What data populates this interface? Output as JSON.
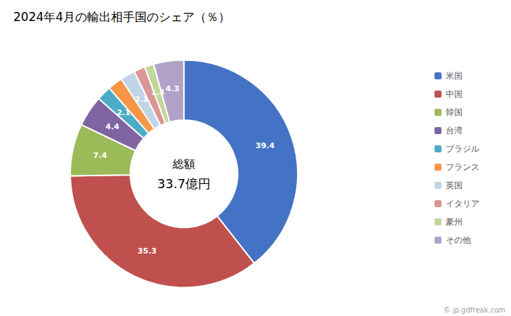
{
  "chart_data": {
    "type": "pie",
    "title": "2024年4月の輸出相手国のシェア（％）",
    "center_text": [
      "総額",
      "33.7億円"
    ],
    "annotations": [
      "© jp.gdfreak.com"
    ],
    "categories": [
      "米国",
      "中国",
      "韓国",
      "台湾",
      "ブラジル",
      "フランス",
      "英国",
      "イタリア",
      "豪州",
      "その他"
    ],
    "values": [
      39.4,
      35.3,
      7.4,
      4.4,
      2.1,
      2.1,
      2.1,
      1.6,
      1.3,
      4.3
    ],
    "colors": [
      "#4472c4",
      "#c0504d",
      "#9bbb59",
      "#8064a2",
      "#4bacc6",
      "#f79646",
      "#c0d5e8",
      "#d99694",
      "#c3d69b",
      "#b2a2c7"
    ],
    "data_labels": true,
    "legend": "right"
  }
}
